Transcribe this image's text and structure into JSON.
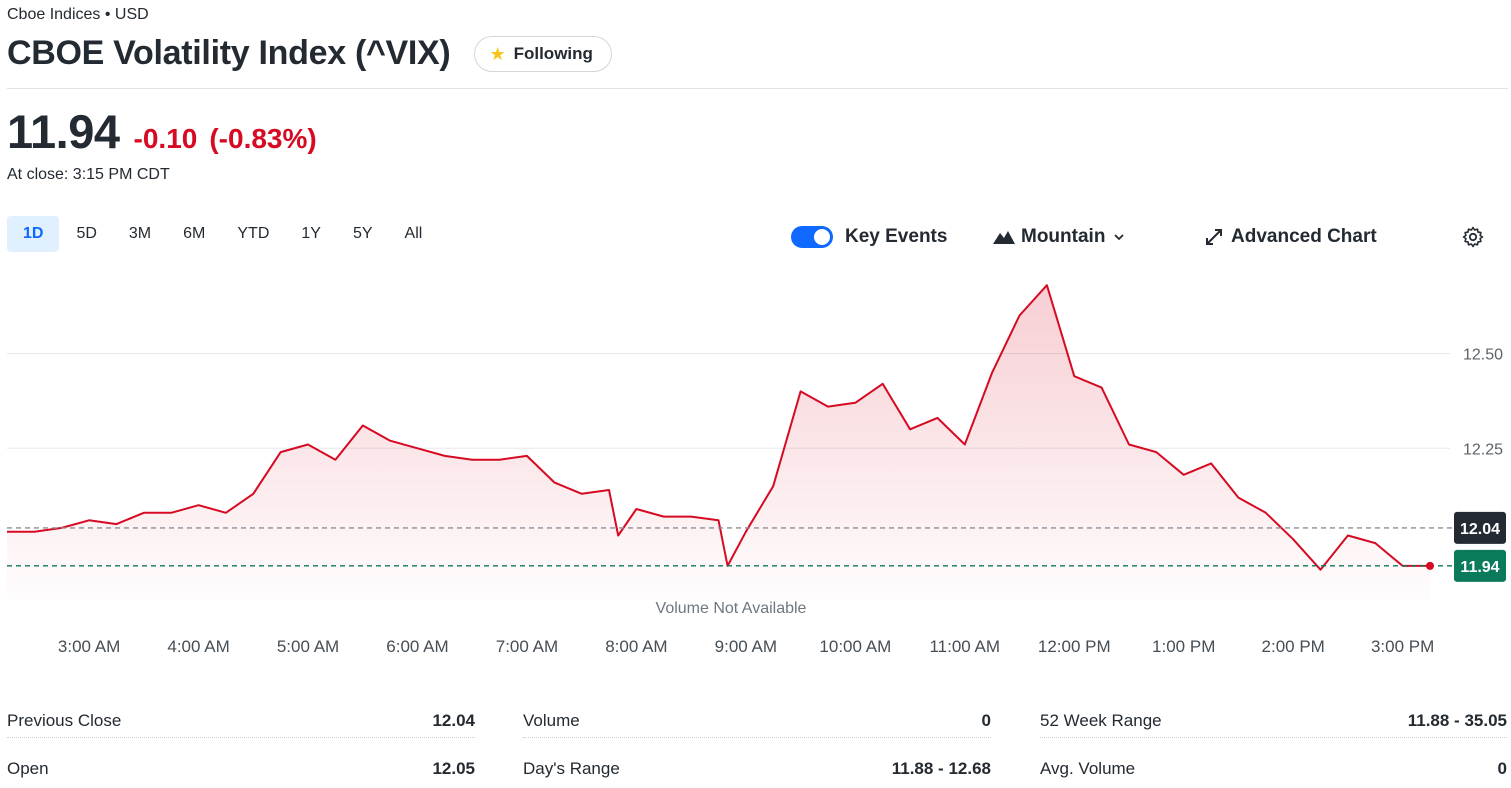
{
  "header": {
    "exchange": "Cboe Indices • USD",
    "title": "CBOE Volatility Index (^VIX)",
    "follow_label": "Following"
  },
  "quote": {
    "price": "11.94",
    "change": "-0.10",
    "change_pct": "(-0.83%)",
    "close_time": "At close: 3:15 PM CDT"
  },
  "ranges": [
    "1D",
    "5D",
    "3M",
    "6M",
    "YTD",
    "1Y",
    "5Y",
    "All"
  ],
  "active_range": "1D",
  "toolbar": {
    "key_events_label": "Key Events",
    "key_events_on": true,
    "chart_type_label": "Mountain",
    "advanced_label": "Advanced Chart"
  },
  "colors": {
    "accent": "#0f69ff",
    "negative": "#d60a22",
    "line": "#d60a22",
    "prev_close_tag": "#232a31",
    "current_tag": "#0a7a5a"
  },
  "chart_data": {
    "type": "area",
    "x": [
      "2:15 AM",
      "2:30 AM",
      "2:45 AM",
      "3:00 AM",
      "3:15 AM",
      "3:30 AM",
      "3:45 AM",
      "4:00 AM",
      "4:15 AM",
      "4:30 AM",
      "4:45 AM",
      "5:00 AM",
      "5:15 AM",
      "5:30 AM",
      "5:45 AM",
      "6:00 AM",
      "6:15 AM",
      "6:30 AM",
      "6:45 AM",
      "7:00 AM",
      "7:15 AM",
      "7:30 AM",
      "7:45 AM",
      "7:50 AM",
      "8:00 AM",
      "8:15 AM",
      "8:30 AM",
      "8:45 AM",
      "8:50 AM",
      "9:00 AM",
      "9:15 AM",
      "9:30 AM",
      "9:45 AM",
      "10:00 AM",
      "10:15 AM",
      "10:30 AM",
      "10:45 AM",
      "11:00 AM",
      "11:15 AM",
      "11:30 AM",
      "11:45 AM",
      "12:00 PM",
      "12:15 PM",
      "12:30 PM",
      "12:45 PM",
      "1:00 PM",
      "1:15 PM",
      "1:30 PM",
      "1:45 PM",
      "2:00 PM",
      "2:15 PM",
      "2:30 PM",
      "2:45 PM",
      "3:00 PM",
      "3:15 PM"
    ],
    "values": [
      12.03,
      12.03,
      12.04,
      12.06,
      12.05,
      12.08,
      12.08,
      12.1,
      12.08,
      12.13,
      12.24,
      12.26,
      12.22,
      12.31,
      12.27,
      12.25,
      12.23,
      12.22,
      12.22,
      12.23,
      12.16,
      12.13,
      12.14,
      12.02,
      12.09,
      12.07,
      12.07,
      12.06,
      11.94,
      12.03,
      12.15,
      12.4,
      12.36,
      12.37,
      12.42,
      12.3,
      12.33,
      12.26,
      12.45,
      12.6,
      12.68,
      12.44,
      12.41,
      12.26,
      12.24,
      12.18,
      12.21,
      12.12,
      12.08,
      12.01,
      11.93,
      12.02,
      12.0,
      11.94,
      11.94
    ],
    "ylim": [
      11.85,
      12.72
    ],
    "y_ticks": [
      "12.25",
      "12.50"
    ],
    "x_tick_labels": [
      "3:00 AM",
      "4:00 AM",
      "5:00 AM",
      "6:00 AM",
      "7:00 AM",
      "8:00 AM",
      "9:00 AM",
      "10:00 AM",
      "11:00 AM",
      "12:00 PM",
      "1:00 PM",
      "2:00 PM",
      "3:00 PM"
    ],
    "previous_close": 12.04,
    "previous_close_label": "12.04",
    "current": 11.94,
    "current_label": "11.94",
    "volume_note": "Volume Not Available",
    "grid": true
  },
  "stats": [
    {
      "label": "Previous Close",
      "value": "12.04"
    },
    {
      "label": "Volume",
      "value": "0"
    },
    {
      "label": "52 Week Range",
      "value": "11.88 - 35.05"
    },
    {
      "label": "Open",
      "value": "12.05"
    },
    {
      "label": "Day's Range",
      "value": "11.88 - 12.68"
    },
    {
      "label": "Avg. Volume",
      "value": "0"
    }
  ]
}
